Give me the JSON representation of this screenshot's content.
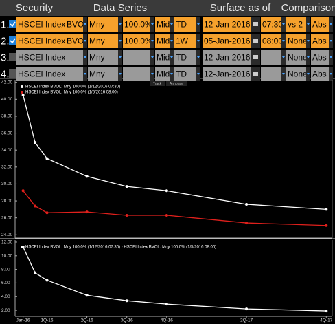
{
  "table": {
    "headers": [
      "Security",
      "Data Series",
      "Surface as of",
      "Comparison"
    ],
    "rows": [
      {
        "number": "1.",
        "enabled": true,
        "security": "HSCEI Index",
        "source": "BVOL",
        "mode": "Mny",
        "level": "100.0%",
        "side": "Mid",
        "tenor": "TD",
        "date": "12-Jan-2016",
        "time": "07:30",
        "comparison": "vs 2",
        "diff": "Abs"
      },
      {
        "number": "2.",
        "enabled": true,
        "security": "HSCEI Index",
        "source": "BVOL",
        "mode": "Mny",
        "level": "100.0%",
        "side": "Mid",
        "tenor": "1W",
        "date": "05-Jan-2016",
        "time": "08:00",
        "comparison": "None",
        "diff": "Abs"
      },
      {
        "number": "3.",
        "enabled": false,
        "security": "HSCEI Index",
        "mode": "Mny",
        "side": "Mid",
        "tenor": "TD",
        "date": "12-Jan-2016",
        "comparison": "None",
        "diff": "Abs"
      },
      {
        "number": "4.",
        "enabled": false,
        "security": "HSCEI Index",
        "mode": "Mny",
        "side": "Mid",
        "tenor": "TD",
        "date": "12-Jan-2016",
        "comparison": "None",
        "diff": "Abs"
      }
    ]
  },
  "toolbar": [
    "Track",
    "Annotate"
  ],
  "chart_data": [
    {
      "type": "line",
      "x": [
        0,
        0.3,
        0.6,
        1.6,
        2.6,
        3.6,
        5.6,
        7.6
      ],
      "xlim": [
        -0.2,
        7.75
      ],
      "ylim": [
        23.7,
        42.3
      ],
      "yticks": [
        {
          "value": 24,
          "label": "24.00"
        },
        {
          "value": 26,
          "label": "26.00"
        },
        {
          "value": 28,
          "label": "28.00"
        },
        {
          "value": 30,
          "label": "30.00"
        },
        {
          "value": 32,
          "label": "32.00"
        },
        {
          "value": 34,
          "label": "34.00"
        },
        {
          "value": 36,
          "label": "36.00"
        },
        {
          "value": 38,
          "label": "38.00"
        },
        {
          "value": 40,
          "label": "40.00"
        },
        {
          "value": 42,
          "label": "42.00"
        }
      ],
      "series": [
        {
          "name": "HSCEI Index BVOL: Mny 100.0% (1/12/2016 07:30)",
          "color": "#ffffff",
          "values": [
            40.5,
            34.9,
            33.0,
            30.9,
            29.7,
            29.2,
            27.6,
            27.0
          ]
        },
        {
          "name": "HSCEI Index BVOL: Mny 100.0% (1/5/2016 08:00)",
          "color": "#e0201c",
          "values": [
            29.2,
            27.4,
            26.6,
            26.7,
            26.3,
            26.3,
            25.4,
            25.1
          ]
        }
      ]
    },
    {
      "type": "line",
      "x": [
        0,
        0.3,
        0.6,
        1.6,
        2.6,
        3.6,
        5.6,
        7.6
      ],
      "xlim": [
        -0.2,
        7.75
      ],
      "xticks": [
        {
          "value": 0,
          "label": "Jan-16"
        },
        {
          "value": 0.6,
          "label": "1Q-16"
        },
        {
          "value": 1.6,
          "label": "2Q-16"
        },
        {
          "value": 2.6,
          "label": "3Q-16"
        },
        {
          "value": 3.6,
          "label": "4Q-16"
        },
        {
          "value": 5.6,
          "label": "2Q-17"
        },
        {
          "value": 7.6,
          "label": "4Q-17"
        }
      ],
      "ylim": [
        1.2,
        12.3
      ],
      "yticks": [
        {
          "value": 2,
          "label": "2.00"
        },
        {
          "value": 4,
          "label": "4.00"
        },
        {
          "value": 6,
          "label": "6.00"
        },
        {
          "value": 8,
          "label": "8.00"
        },
        {
          "value": 10,
          "label": "10.00"
        },
        {
          "value": 12,
          "label": "12.00"
        }
      ],
      "series": [
        {
          "name": "HSCEI Index BVOL: Mny 100.0% (1/12/2016 07:30) - HSCEI Index BVOL: Mny 100.0% (1/5/2016 08:00)",
          "color": "#ffffff",
          "values": [
            11.3,
            7.5,
            6.4,
            4.2,
            3.4,
            2.9,
            2.2,
            1.9
          ]
        }
      ]
    }
  ]
}
